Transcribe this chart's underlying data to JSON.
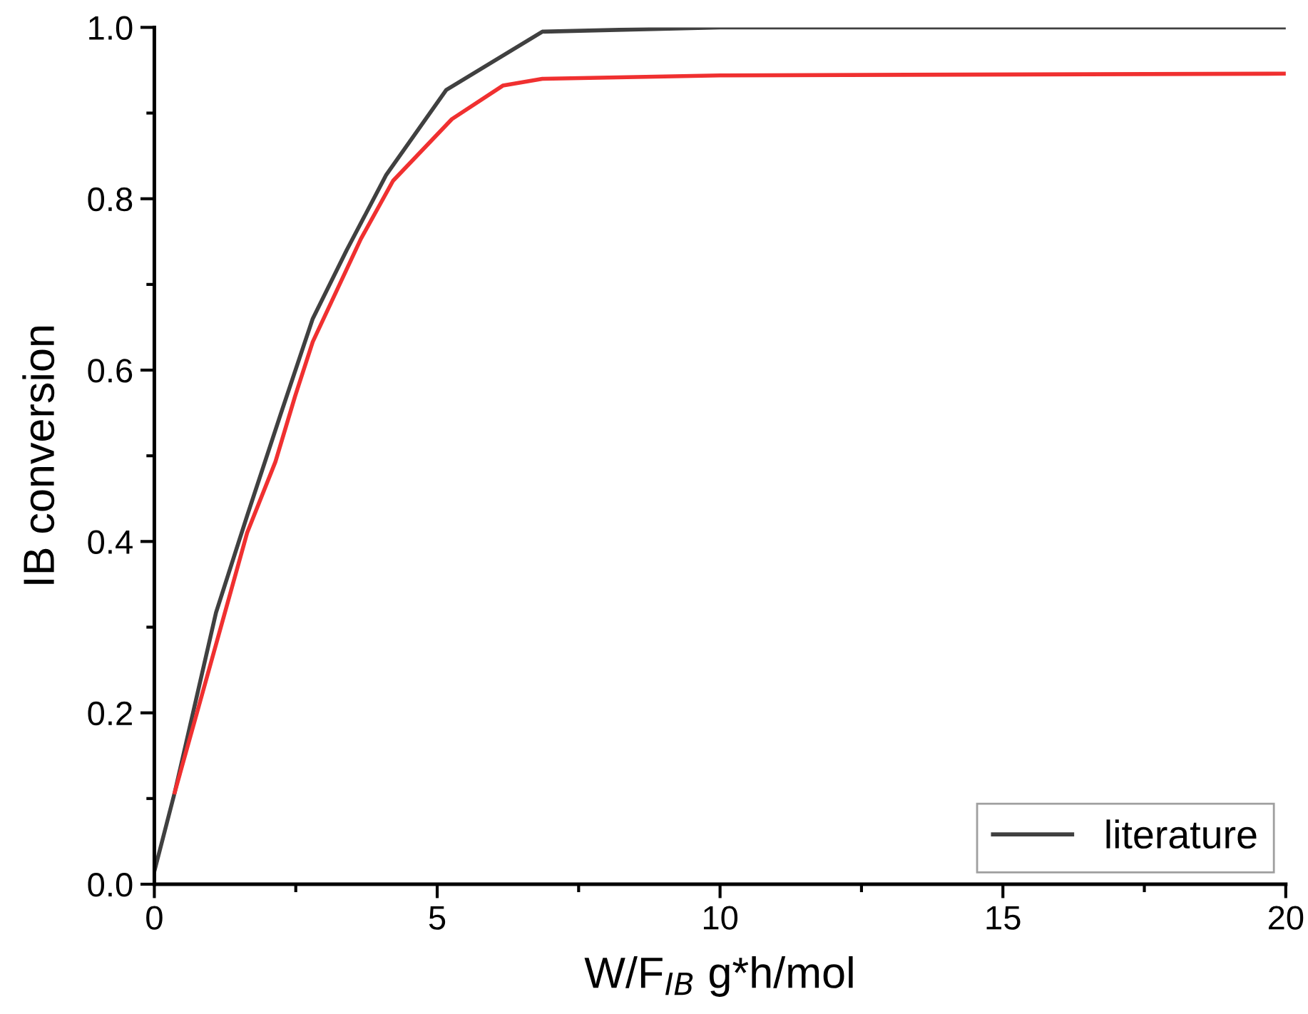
{
  "chart_data": {
    "type": "line",
    "xlabel": "W/F$_{IB}$ g*h/mol",
    "ylabel": "IB conversion",
    "xlim": [
      0,
      20
    ],
    "xticks": [
      0,
      5,
      10,
      15,
      20
    ],
    "ylim": [
      0,
      1.0
    ],
    "yticks": [
      {
        "value": 0,
        "label": "0.0"
      },
      0.2,
      0.4,
      0.6,
      0.8,
      {
        "value": 1.0,
        "label": "1.0"
      }
    ],
    "grid": false,
    "legend": "bottom right",
    "marker": "none",
    "line_style": "solid",
    "series": [
      {
        "name": "literature",
        "color": "#404040",
        "x": [
          0,
          0.36,
          1.09,
          1.64,
          2.24,
          2.8,
          3.4,
          4.1,
          5.16,
          6.86,
          10,
          20
        ],
        "values": [
          0.015,
          0.107,
          0.317,
          0.43,
          0.55,
          0.66,
          0.74,
          0.828,
          0.927,
          0.995,
          1.0,
          1.0
        ]
      },
      {
        "color": "#f03030",
        "x": [
          0.36,
          1.64,
          2.14,
          2.49,
          2.8,
          3.65,
          4.22,
          5.26,
          6.16,
          6.86,
          10,
          20
        ],
        "values": [
          0.107,
          0.41,
          0.493,
          0.57,
          0.633,
          0.753,
          0.821,
          0.893,
          0.932,
          0.94,
          0.944,
          0.946
        ]
      }
    ]
  }
}
